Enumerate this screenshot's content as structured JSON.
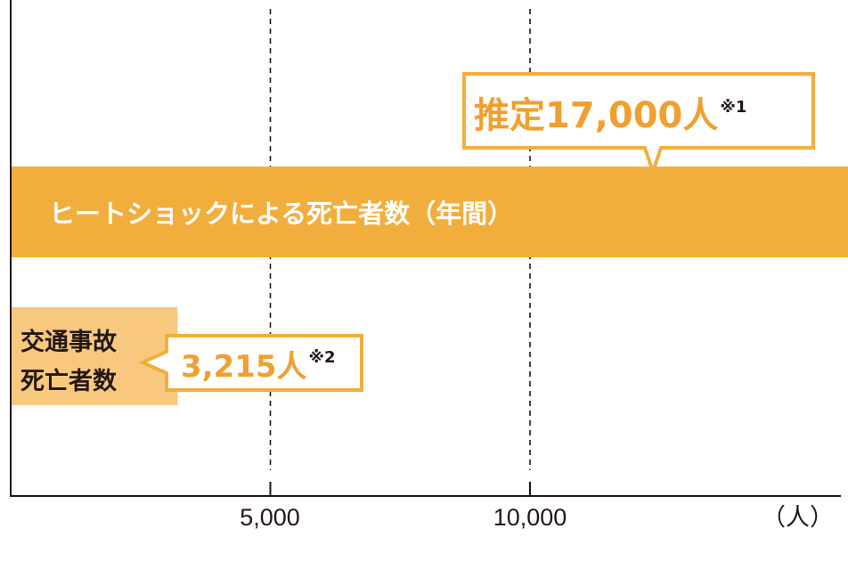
{
  "chart_data": {
    "type": "bar",
    "orientation": "horizontal",
    "categories": [
      "ヒートショックによる死亡者数（年間）",
      "交通事故死亡者数"
    ],
    "values": [
      17000,
      3215
    ],
    "category_label_2_lines": [
      "交通事故",
      "死亡者数"
    ],
    "value_labels": [
      {
        "main": "推定17,000人",
        "note": "※1"
      },
      {
        "main": "3,215人",
        "note": "※2"
      }
    ],
    "x_ticks": [
      5000,
      10000
    ],
    "x_tick_labels": [
      "5,000",
      "10,000"
    ],
    "x_unit": "（人）",
    "xlim": [
      0,
      16200
    ],
    "grid": "dashed vertical",
    "colors": {
      "bar_main": "#f2ae3d",
      "bar_small": "#f8c87f",
      "callout_text": "#f0a030",
      "axis": "#231815"
    }
  }
}
